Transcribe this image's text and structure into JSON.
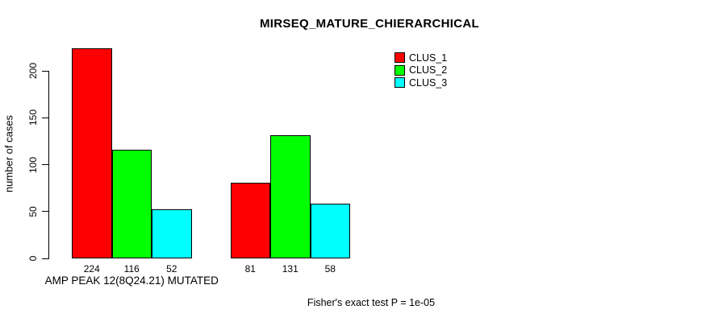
{
  "chart_data": {
    "type": "bar",
    "title": "MIRSEQ_MATURE_CHIERARCHICAL",
    "ylabel": "number of cases",
    "xlabel": "",
    "categories": [
      "AMP PEAK 12(8Q24.21) MUTATED",
      ""
    ],
    "series": [
      {
        "name": "CLUS_1",
        "color": "#ff0000",
        "values": [
          224,
          81
        ]
      },
      {
        "name": "CLUS_2",
        "color": "#00ff00",
        "values": [
          116,
          131
        ]
      },
      {
        "name": "CLUS_3",
        "color": "#00ffff",
        "values": [
          52,
          58
        ]
      }
    ],
    "yticks": [
      0,
      50,
      100,
      150,
      200
    ],
    "ylim": [
      0,
      200
    ],
    "bar_value_labels": [
      [
        224,
        116,
        52
      ],
      [
        81,
        131,
        58
      ]
    ],
    "legend_position": "top-right",
    "legend_entries": [
      "CLUS_1",
      "CLUS_2",
      "CLUS_3"
    ],
    "grid": false,
    "annotation": "Fisher's exact test P = 1e-05",
    "colors": {
      "axis": "#000000",
      "text": "#000000",
      "background": "#ffffff"
    }
  }
}
